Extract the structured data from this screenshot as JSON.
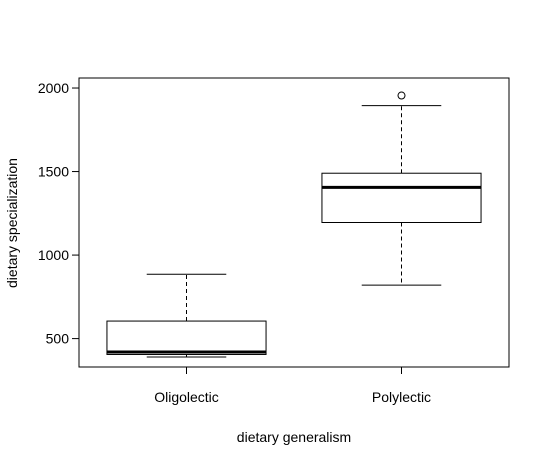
{
  "chart_data": {
    "type": "boxplot",
    "title": "",
    "xlabel": "dietary generalism",
    "ylabel": "dietary specialization",
    "ylim": [
      330,
      2060
    ],
    "yticks": [
      500,
      1000,
      1500,
      2000
    ],
    "categories": [
      "Oligolectic",
      "Polylectic"
    ],
    "boxes": [
      {
        "name": "Oligolectic",
        "whisker_low": 390,
        "q1": 405,
        "median": 420,
        "q3": 605,
        "whisker_high": 885,
        "outliers": []
      },
      {
        "name": "Polylectic",
        "whisker_low": 820,
        "q1": 1195,
        "median": 1405,
        "q3": 1490,
        "whisker_high": 1895,
        "outliers": [
          1955
        ]
      }
    ],
    "grid": false,
    "legend": "none"
  }
}
